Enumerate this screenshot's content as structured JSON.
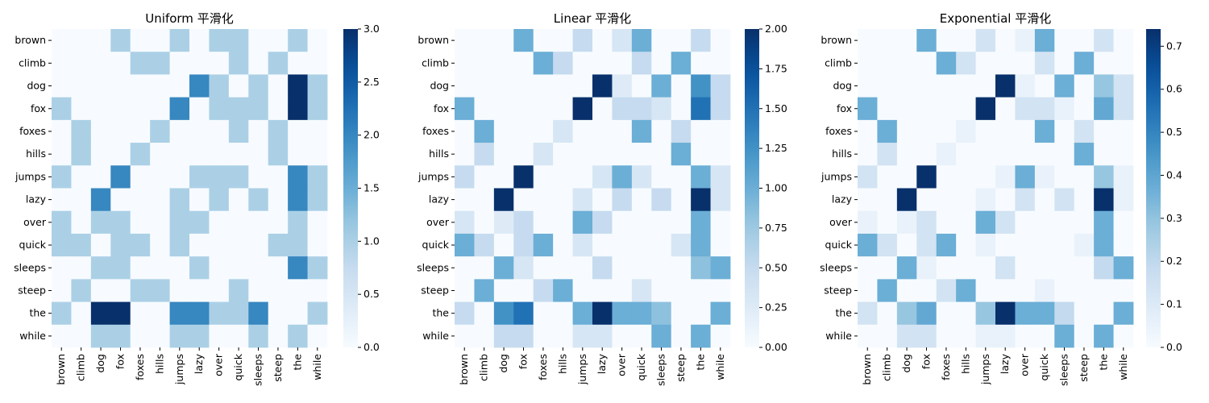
{
  "chart_data": [
    {
      "type": "heatmap",
      "title": "Uniform 平滑化",
      "rows": [
        "brown",
        "climb",
        "dog",
        "fox",
        "foxes",
        "hills",
        "jumps",
        "lazy",
        "over",
        "quick",
        "sleeps",
        "steep",
        "the",
        "while"
      ],
      "columns": [
        "brown",
        "climb",
        "dog",
        "fox",
        "foxes",
        "hills",
        "jumps",
        "lazy",
        "over",
        "quick",
        "sleeps",
        "steep",
        "the",
        "while"
      ],
      "colormap": "Blues",
      "vmin": 0,
      "vmax": 3,
      "colorbar_ticks": [
        "0.0",
        "0.5",
        "1.0",
        "1.5",
        "2.0",
        "2.5",
        "3.0"
      ],
      "values": [
        [
          0,
          0,
          0,
          1,
          0,
          0,
          1,
          0,
          1,
          1,
          0,
          0,
          1,
          0
        ],
        [
          0,
          0,
          0,
          0,
          1,
          1,
          0,
          0,
          0,
          1,
          0,
          1,
          0,
          0
        ],
        [
          0,
          0,
          0,
          0,
          0,
          0,
          0,
          2,
          1,
          0,
          1,
          0,
          3,
          1
        ],
        [
          1,
          0,
          0,
          0,
          0,
          0,
          2,
          0,
          1,
          1,
          1,
          0,
          3,
          1
        ],
        [
          0,
          1,
          0,
          0,
          0,
          1,
          0,
          0,
          0,
          1,
          0,
          1,
          0,
          0
        ],
        [
          0,
          1,
          0,
          0,
          1,
          0,
          0,
          0,
          0,
          0,
          0,
          1,
          0,
          0
        ],
        [
          1,
          0,
          0,
          2,
          0,
          0,
          0,
          1,
          1,
          1,
          0,
          0,
          2,
          1
        ],
        [
          0,
          0,
          2,
          0,
          0,
          0,
          1,
          0,
          1,
          0,
          1,
          0,
          2,
          1
        ],
        [
          1,
          0,
          1,
          1,
          0,
          0,
          1,
          1,
          0,
          0,
          0,
          0,
          1,
          0
        ],
        [
          1,
          1,
          0,
          1,
          1,
          0,
          1,
          0,
          0,
          0,
          0,
          1,
          1,
          0
        ],
        [
          0,
          0,
          1,
          1,
          0,
          0,
          0,
          1,
          0,
          0,
          0,
          0,
          2,
          1
        ],
        [
          0,
          1,
          0,
          0,
          1,
          1,
          0,
          0,
          0,
          1,
          0,
          0,
          0,
          0
        ],
        [
          1,
          0,
          3,
          3,
          0,
          0,
          2,
          2,
          1,
          1,
          2,
          0,
          0,
          1
        ],
        [
          0,
          0,
          1,
          1,
          0,
          0,
          1,
          1,
          0,
          0,
          1,
          0,
          1,
          0
        ]
      ]
    },
    {
      "type": "heatmap",
      "title": "Linear 平滑化",
      "rows": [
        "brown",
        "climb",
        "dog",
        "fox",
        "foxes",
        "hills",
        "jumps",
        "lazy",
        "over",
        "quick",
        "sleeps",
        "steep",
        "the",
        "while"
      ],
      "columns": [
        "brown",
        "climb",
        "dog",
        "fox",
        "foxes",
        "hills",
        "jumps",
        "lazy",
        "over",
        "quick",
        "sleeps",
        "steep",
        "the",
        "while"
      ],
      "colormap": "Blues",
      "vmin": 0,
      "vmax": 2,
      "colorbar_ticks": [
        "0.00",
        "0.25",
        "0.50",
        "0.75",
        "1.00",
        "1.25",
        "1.50",
        "1.75",
        "2.00"
      ],
      "values": [
        [
          0,
          0,
          0,
          1.0,
          0,
          0,
          0.5,
          0,
          0.33,
          1.0,
          0,
          0,
          0.5,
          0
        ],
        [
          0,
          0,
          0,
          0,
          1.0,
          0.5,
          0,
          0,
          0,
          0.5,
          0,
          1.0,
          0,
          0
        ],
        [
          0,
          0,
          0,
          0,
          0,
          0,
          0,
          2.0,
          0.25,
          0,
          1.0,
          0,
          1.25,
          0.5
        ],
        [
          1.0,
          0,
          0,
          0,
          0,
          0,
          2.0,
          0,
          0.5,
          0.5,
          0.33,
          0,
          1.5,
          0.5
        ],
        [
          0,
          1.0,
          0,
          0,
          0,
          0.33,
          0,
          0,
          0,
          1.0,
          0,
          0.5,
          0,
          0
        ],
        [
          0,
          0.5,
          0,
          0,
          0.33,
          0,
          0,
          0,
          0,
          0,
          0,
          1.0,
          0,
          0
        ],
        [
          0.5,
          0,
          0,
          2.0,
          0,
          0,
          0,
          0.33,
          1.0,
          0.33,
          0,
          0,
          1.0,
          0.33
        ],
        [
          0,
          0,
          2.0,
          0,
          0,
          0,
          0.33,
          0,
          0.5,
          0,
          0.5,
          0,
          2.0,
          0.33
        ],
        [
          0.33,
          0,
          0.25,
          0.5,
          0,
          0,
          1.0,
          0.5,
          0,
          0,
          0,
          0,
          1.0,
          0
        ],
        [
          1.0,
          0.5,
          0,
          0.5,
          1.0,
          0,
          0.33,
          0,
          0,
          0,
          0,
          0.33,
          1.0,
          0
        ],
        [
          0,
          0,
          1.0,
          0.33,
          0,
          0,
          0,
          0.5,
          0,
          0,
          0,
          0,
          0.83,
          1.0
        ],
        [
          0,
          1.0,
          0,
          0,
          0.5,
          1.0,
          0,
          0,
          0,
          0.33,
          0,
          0,
          0,
          0
        ],
        [
          0.5,
          0,
          1.25,
          1.5,
          0,
          0,
          1.0,
          2.0,
          1.0,
          1.0,
          0.83,
          0,
          0,
          1.0
        ],
        [
          0,
          0,
          0.5,
          0.5,
          0,
          0,
          0.33,
          0.33,
          0,
          0,
          1.0,
          0,
          1.0,
          0
        ]
      ]
    },
    {
      "type": "heatmap",
      "title": "Exponential 平滑化",
      "rows": [
        "brown",
        "climb",
        "dog",
        "fox",
        "foxes",
        "hills",
        "jumps",
        "lazy",
        "over",
        "quick",
        "sleeps",
        "steep",
        "the",
        "while"
      ],
      "columns": [
        "brown",
        "climb",
        "dog",
        "fox",
        "foxes",
        "hills",
        "jumps",
        "lazy",
        "over",
        "quick",
        "sleeps",
        "steep",
        "the",
        "while"
      ],
      "colormap": "Blues",
      "vmin": 0,
      "vmax": 0.74,
      "colorbar_ticks": [
        "0.0",
        "0.1",
        "0.2",
        "0.3",
        "0.4",
        "0.5",
        "0.6",
        "0.7"
      ],
      "values": [
        [
          0,
          0,
          0,
          0.37,
          0,
          0,
          0.14,
          0,
          0.05,
          0.37,
          0,
          0,
          0.14,
          0
        ],
        [
          0,
          0,
          0,
          0,
          0.37,
          0.14,
          0,
          0,
          0,
          0.14,
          0,
          0.37,
          0,
          0
        ],
        [
          0,
          0,
          0,
          0,
          0,
          0,
          0,
          0.74,
          0.05,
          0,
          0.37,
          0,
          0.29,
          0.14
        ],
        [
          0.37,
          0,
          0,
          0,
          0,
          0,
          0.74,
          0,
          0.14,
          0.14,
          0.05,
          0,
          0.39,
          0.14
        ],
        [
          0,
          0.37,
          0,
          0,
          0,
          0.05,
          0,
          0,
          0,
          0.37,
          0,
          0.14,
          0,
          0
        ],
        [
          0,
          0.14,
          0,
          0,
          0.05,
          0,
          0,
          0,
          0,
          0,
          0,
          0.37,
          0,
          0
        ],
        [
          0.14,
          0,
          0,
          0.74,
          0,
          0,
          0,
          0.05,
          0.37,
          0.05,
          0,
          0,
          0.29,
          0.05
        ],
        [
          0,
          0,
          0.74,
          0,
          0,
          0,
          0.05,
          0,
          0.14,
          0,
          0.14,
          0,
          0.74,
          0.05
        ],
        [
          0.05,
          0,
          0.05,
          0.14,
          0,
          0,
          0.37,
          0.14,
          0,
          0,
          0,
          0,
          0.37,
          0
        ],
        [
          0.37,
          0.14,
          0,
          0.14,
          0.37,
          0,
          0.05,
          0,
          0,
          0,
          0,
          0.05,
          0.37,
          0
        ],
        [
          0,
          0,
          0.37,
          0.05,
          0,
          0,
          0,
          0.14,
          0,
          0,
          0,
          0,
          0.19,
          0.37
        ],
        [
          0,
          0.37,
          0,
          0,
          0.14,
          0.37,
          0,
          0,
          0,
          0.05,
          0,
          0,
          0,
          0
        ],
        [
          0.14,
          0,
          0.29,
          0.39,
          0,
          0,
          0.29,
          0.74,
          0.37,
          0.37,
          0.19,
          0,
          0,
          0.37
        ],
        [
          0,
          0,
          0.14,
          0.14,
          0,
          0,
          0.05,
          0.05,
          0,
          0,
          0.37,
          0,
          0.37,
          0
        ]
      ]
    }
  ]
}
